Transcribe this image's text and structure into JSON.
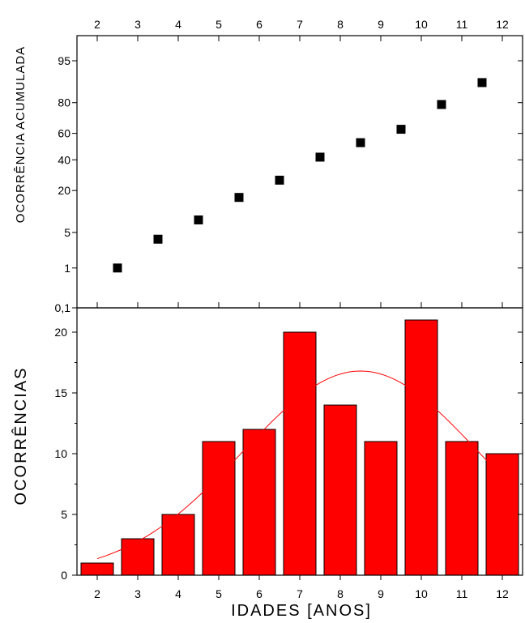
{
  "chart_data": [
    {
      "type": "scatter",
      "title": "",
      "xlabel": "",
      "ylabel": "OCORRÊNCIA ACUMULADA",
      "y_scale": "normal-probability",
      "xlim": [
        1.5,
        12.5
      ],
      "x_ticks": [
        2,
        3,
        4,
        5,
        6,
        7,
        8,
        9,
        10,
        11,
        12
      ],
      "y_ticks": [
        "0,1",
        "1",
        "5",
        "20",
        "40",
        "60",
        "80",
        "95"
      ],
      "y_tick_values": [
        0.1,
        1,
        5,
        20,
        40,
        60,
        80,
        95
      ],
      "points": [
        {
          "x": 2.5,
          "y": 1.0
        },
        {
          "x": 3.5,
          "y": 3.8
        },
        {
          "x": 4.5,
          "y": 8.0
        },
        {
          "x": 5.5,
          "y": 16.5
        },
        {
          "x": 6.5,
          "y": 26.0
        },
        {
          "x": 7.5,
          "y": 42.0
        },
        {
          "x": 8.5,
          "y": 53.0
        },
        {
          "x": 9.5,
          "y": 63.0
        },
        {
          "x": 10.5,
          "y": 79.0
        },
        {
          "x": 11.5,
          "y": 89.0
        }
      ],
      "color": "#000000"
    },
    {
      "type": "bar",
      "title": "",
      "xlabel": "IDADES [ANOS]",
      "ylabel": "OCORRÊNCIAS",
      "xlim": [
        1.5,
        12.5
      ],
      "ylim": [
        0,
        22
      ],
      "x_ticks": [
        2,
        3,
        4,
        5,
        6,
        7,
        8,
        9,
        10,
        11,
        12
      ],
      "y_ticks": [
        0,
        5,
        10,
        15,
        20
      ],
      "bars": [
        {
          "left": 1.6,
          "right": 2.4,
          "value": 1
        },
        {
          "left": 2.6,
          "right": 3.4,
          "value": 3
        },
        {
          "left": 3.6,
          "right": 4.4,
          "value": 5
        },
        {
          "left": 4.6,
          "right": 5.4,
          "value": 11
        },
        {
          "left": 5.6,
          "right": 6.4,
          "value": 12
        },
        {
          "left": 6.6,
          "right": 7.4,
          "value": 20
        },
        {
          "left": 7.6,
          "right": 8.4,
          "value": 14
        },
        {
          "left": 8.6,
          "right": 9.4,
          "value": 11
        },
        {
          "left": 9.6,
          "right": 10.4,
          "value": 21
        },
        {
          "left": 10.6,
          "right": 11.4,
          "value": 11
        },
        {
          "left": 11.6,
          "right": 12.4,
          "value": 10
        }
      ],
      "fit_curve": {
        "type": "gaussian",
        "mean": 8.5,
        "sd": 2.9,
        "peak": 16.8,
        "x_range": [
          2.0,
          12.0
        ]
      },
      "bar_color": "#ff0000",
      "curve_color": "#ff0000"
    }
  ]
}
